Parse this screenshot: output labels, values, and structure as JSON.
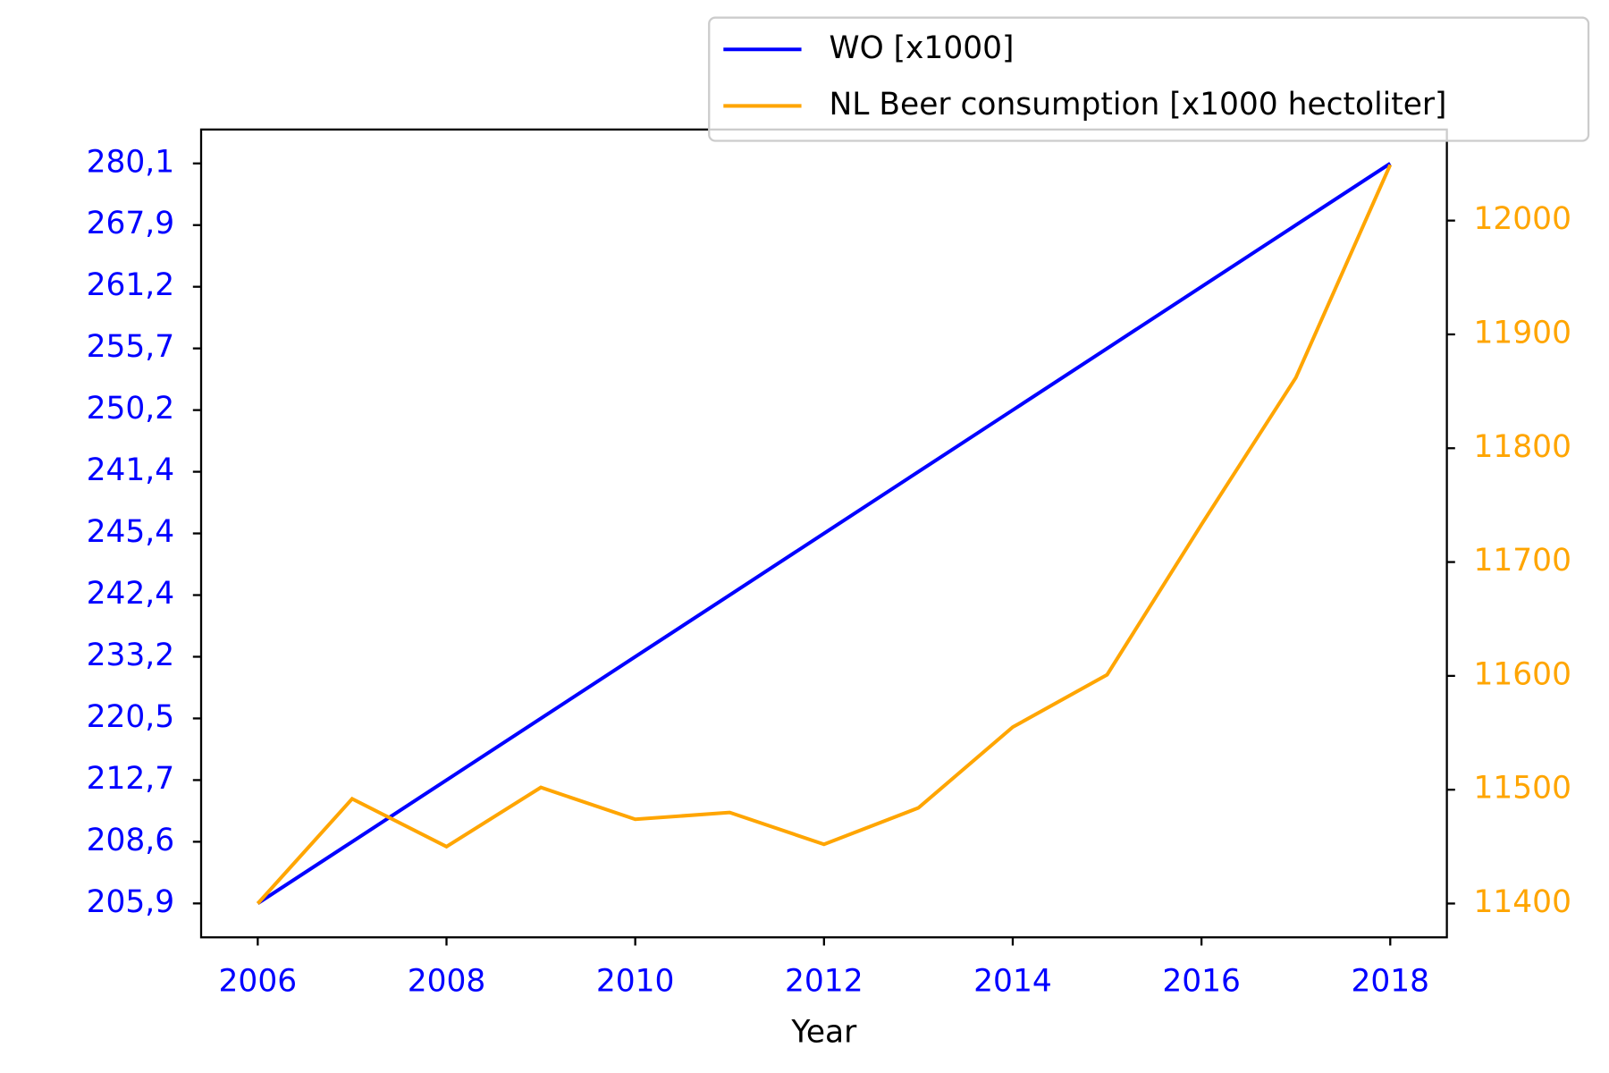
{
  "chart_data": {
    "type": "line",
    "x": [
      2006,
      2007,
      2008,
      2009,
      2010,
      2011,
      2012,
      2013,
      2014,
      2015,
      2016,
      2017,
      2018
    ],
    "xlabel": "Year",
    "xlim": [
      2005.4,
      2018.6
    ],
    "xticks": [
      2006,
      2008,
      2010,
      2012,
      2014,
      2016,
      2018
    ],
    "y_categorical": true,
    "ylim": [
      -0.55,
      12.55
    ],
    "y2lim": [
      11370.3,
      12080
    ],
    "y2ticks": [
      11400,
      11500,
      11600,
      11700,
      11800,
      11900,
      12000
    ],
    "legend": "upper right",
    "series": [
      {
        "name": "WO [x1000]",
        "color": "#0000ff",
        "values": [
          "205,9",
          "208,6",
          "212,7",
          "220,5",
          "233,2",
          "242,4",
          "245,4",
          "241,4",
          "250,2",
          "255,7",
          "261,2",
          "267,9",
          "280,1"
        ]
      },
      {
        "name": "NL Beer consumption [x1000 hectoliter]",
        "color": "#ffa500",
        "axis": "y2",
        "values": [
          11400,
          11492,
          11450,
          11502,
          11474,
          11480,
          11452,
          11484,
          11555,
          11601,
          11733,
          11862,
          12049
        ]
      }
    ]
  }
}
